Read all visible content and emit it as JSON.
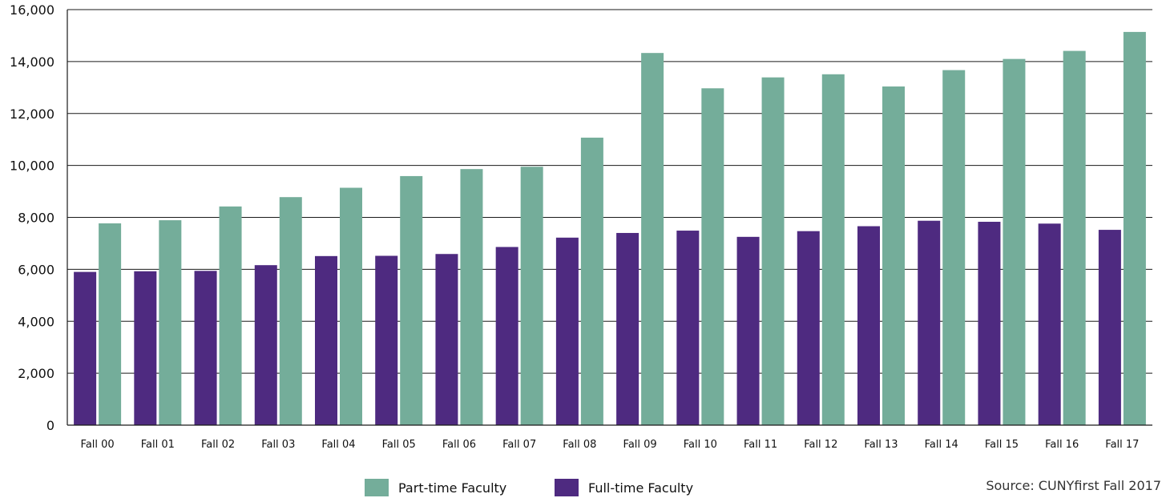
{
  "chart_data": {
    "type": "bar",
    "title": "",
    "xlabel": "",
    "ylabel": "",
    "ylim": [
      0,
      16000
    ],
    "yticks": [
      0,
      2000,
      4000,
      6000,
      8000,
      10000,
      12000,
      14000,
      16000
    ],
    "ytick_labels": [
      "0",
      "2,000",
      "4,000",
      "6,000",
      "8,000",
      "10,000",
      "12,000",
      "14,000",
      "16,000"
    ],
    "grid": true,
    "legend_position": "bottom-center",
    "categories": [
      "Fall 00",
      "Fall 01",
      "Fall 02",
      "Fall 03",
      "Fall 04",
      "Fall 05",
      "Fall 06",
      "Fall 07",
      "Fall 08",
      "Fall 09",
      "Fall 10",
      "Fall 11",
      "Fall 12",
      "Fall 13",
      "Fall 14",
      "Fall 15",
      "Fall 16",
      "Fall 17"
    ],
    "series": [
      {
        "name": "Full-time Faculty",
        "color": "#4e2a80",
        "values": [
          5900,
          5925,
          5940,
          6160,
          6510,
          6520,
          6590,
          6860,
          7220,
          7400,
          7490,
          7250,
          7470,
          7660,
          7870,
          7830,
          7760,
          7520
        ]
      },
      {
        "name": "Part-time Faculty",
        "color": "#74ad9a",
        "values": [
          7770,
          7890,
          8420,
          8780,
          9140,
          9590,
          9860,
          9950,
          11070,
          14330,
          12970,
          13390,
          13510,
          13040,
          13670,
          14100,
          14410,
          15140
        ]
      }
    ],
    "legend": [
      "Part-time Faculty",
      "Full-time Faculty"
    ],
    "source_note": "Source: CUNYfirst Fall 2017"
  }
}
